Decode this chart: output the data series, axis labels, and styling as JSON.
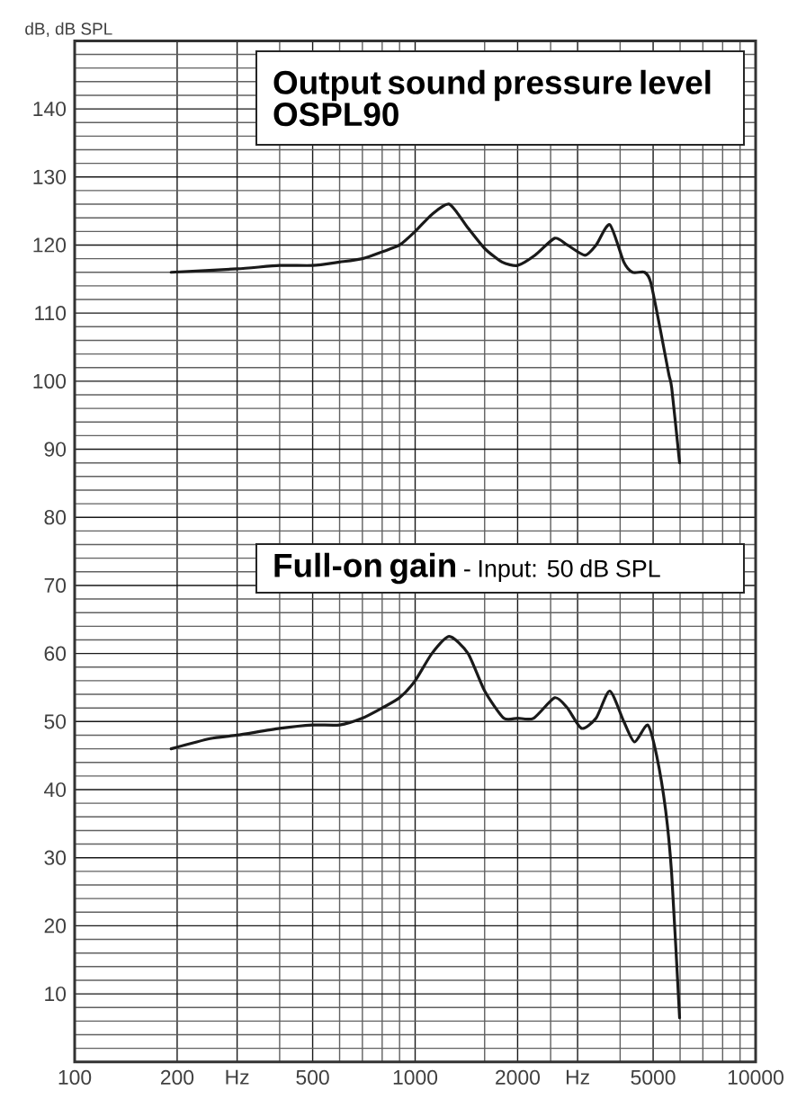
{
  "chart_data": {
    "type": "line",
    "ylabel": "dB, dB SPL",
    "annotations": [
      "- Input: 50 dB SPL"
    ],
    "series": [
      {
        "name": "Output sound pressure level OSPL90",
        "color": "#1a1a1a",
        "x": [
          192,
          300,
          400,
          500,
          600,
          700,
          800,
          900,
          1000,
          1120,
          1260,
          1430,
          1600,
          1800,
          2000,
          2250,
          2570,
          2800,
          3150,
          3400,
          3730,
          4100,
          4350,
          4720,
          4920,
          5230,
          5560,
          5670,
          5980
        ],
        "values": [
          116,
          116.5,
          117,
          117,
          117.5,
          118,
          119,
          120,
          122,
          124.5,
          126,
          122.5,
          119.5,
          117.5,
          117,
          118.5,
          121,
          120,
          118.5,
          120,
          123,
          117.5,
          116,
          116,
          114.5,
          108,
          101,
          99,
          88
        ]
      },
      {
        "name": "Full-on gain",
        "color": "#1a1a1a",
        "x": [
          192,
          250,
          300,
          400,
          500,
          600,
          700,
          800,
          900,
          1000,
          1120,
          1260,
          1430,
          1600,
          1820,
          2000,
          2230,
          2570,
          2800,
          3080,
          3400,
          3730,
          4100,
          4410,
          4820,
          5120,
          5440,
          5670,
          5980
        ],
        "values": [
          46,
          47.5,
          48,
          49,
          49.5,
          49.5,
          50.5,
          52,
          53.5,
          56,
          60,
          62.5,
          60,
          54.5,
          50.5,
          50.5,
          50.5,
          53.5,
          52,
          49,
          50.5,
          54.5,
          50,
          47,
          49.5,
          45,
          37,
          27.5,
          6.5
        ]
      }
    ],
    "log": "x",
    "xlim": [
      100,
      10000
    ],
    "ylim": [
      0,
      150
    ],
    "xticks": [
      100,
      200,
      {
        "value": 300,
        "label": "Hz"
      },
      {
        "value": 400,
        "label": null
      },
      500,
      {
        "value": 600,
        "label": null
      },
      {
        "value": 700,
        "label": null
      },
      {
        "value": 800,
        "label": null
      },
      {
        "value": 900,
        "label": null
      },
      1000,
      {
        "value": 1600,
        "label": null
      },
      2000,
      {
        "value": 2500,
        "label": null
      },
      {
        "value": 3000,
        "label": "Hz"
      },
      {
        "value": 4000,
        "label": null
      },
      5000,
      {
        "value": 6000,
        "label": null
      },
      {
        "value": 7000,
        "label": null
      },
      {
        "value": 8000,
        "label": null
      },
      {
        "value": 9000,
        "label": null
      },
      10000
    ],
    "yticks": [
      {
        "value": 2,
        "label": null
      },
      {
        "value": 4,
        "label": null
      },
      {
        "value": 6,
        "label": null
      },
      {
        "value": 8,
        "label": null
      },
      10,
      {
        "value": 12,
        "label": null
      },
      {
        "value": 14,
        "label": null
      },
      {
        "value": 16,
        "label": null
      },
      {
        "value": 18,
        "label": null
      },
      20,
      {
        "value": 22,
        "label": null
      },
      {
        "value": 24,
        "label": null
      },
      {
        "value": 26,
        "label": null
      },
      {
        "value": 28,
        "label": null
      },
      30,
      {
        "value": 32,
        "label": null
      },
      {
        "value": 34,
        "label": null
      },
      {
        "value": 36,
        "label": null
      },
      {
        "value": 38,
        "label": null
      },
      40,
      {
        "value": 42,
        "label": null
      },
      {
        "value": 44,
        "label": null
      },
      {
        "value": 46,
        "label": null
      },
      {
        "value": 48,
        "label": null
      },
      50,
      {
        "value": 52,
        "label": null
      },
      {
        "value": 54,
        "label": null
      },
      {
        "value": 56,
        "label": null
      },
      {
        "value": 58,
        "label": null
      },
      60,
      {
        "value": 62,
        "label": null
      },
      {
        "value": 64,
        "label": null
      },
      {
        "value": 66,
        "label": null
      },
      {
        "value": 68,
        "label": null
      },
      70,
      {
        "value": 72,
        "label": null
      },
      {
        "value": 74,
        "label": null
      },
      {
        "value": 76,
        "label": null
      },
      {
        "value": 78,
        "label": null
      },
      80,
      {
        "value": 82,
        "label": null
      },
      {
        "value": 84,
        "label": null
      },
      {
        "value": 86,
        "label": null
      },
      {
        "value": 88,
        "label": null
      },
      90,
      {
        "value": 92,
        "label": null
      },
      {
        "value": 94,
        "label": null
      },
      {
        "value": 96,
        "label": null
      },
      {
        "value": 98,
        "label": null
      },
      100,
      {
        "value": 102,
        "label": null
      },
      {
        "value": 104,
        "label": null
      },
      {
        "value": 106,
        "label": null
      },
      {
        "value": 108,
        "label": null
      },
      110,
      {
        "value": 112,
        "label": null
      },
      {
        "value": 114,
        "label": null
      },
      {
        "value": 116,
        "label": null
      },
      {
        "value": 118,
        "label": null
      },
      120,
      {
        "value": 122,
        "label": null
      },
      {
        "value": 124,
        "label": null
      },
      {
        "value": 126,
        "label": null
      },
      {
        "value": 128,
        "label": null
      },
      130,
      {
        "value": 132,
        "label": null
      },
      {
        "value": 134,
        "label": null
      },
      {
        "value": 136,
        "label": null
      },
      {
        "value": 138,
        "label": null
      },
      140,
      {
        "value": 142,
        "label": null
      },
      {
        "value": 144,
        "label": null
      },
      {
        "value": 146,
        "label": null
      },
      {
        "value": 148,
        "label": null
      }
    ],
    "grid": true,
    "marker": "none",
    "line_style": "solid"
  }
}
